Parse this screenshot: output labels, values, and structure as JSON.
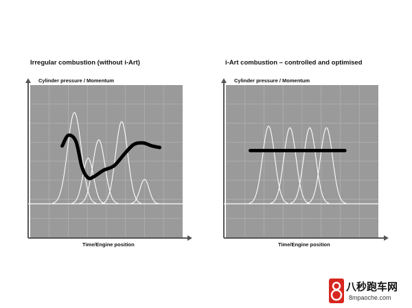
{
  "chart_data": [
    {
      "type": "line",
      "title": "Irregular combustion (without i-Art)",
      "ylabel": "Cylinder pressure / Momentum",
      "xlabel": "Time/Engine position",
      "grid": true,
      "momentum_line": {
        "x": [
          0.21,
          0.25,
          0.3,
          0.34,
          0.38,
          0.42,
          0.48,
          0.55,
          0.62,
          0.68,
          0.74,
          0.8,
          0.85
        ],
        "y": [
          0.6,
          0.67,
          0.63,
          0.46,
          0.39,
          0.4,
          0.44,
          0.47,
          0.55,
          0.61,
          0.62,
          0.6,
          0.59
        ]
      },
      "pressure_peaks": [
        {
          "center": 0.29,
          "height": 0.6,
          "width": 0.045
        },
        {
          "center": 0.38,
          "height": 0.3,
          "width": 0.035
        },
        {
          "center": 0.45,
          "height": 0.42,
          "width": 0.04
        },
        {
          "center": 0.6,
          "height": 0.54,
          "width": 0.04
        },
        {
          "center": 0.75,
          "height": 0.16,
          "width": 0.03
        }
      ],
      "baseline": 0.22
    },
    {
      "type": "line",
      "title": "i-Art combustion – controlled and optimised",
      "ylabel": "Cylinder pressure / Momentum",
      "xlabel": "Time/Engine position",
      "grid": true,
      "momentum_line": {
        "x": [
          0.16,
          0.78
        ],
        "y": [
          0.57,
          0.57
        ]
      },
      "pressure_peaks": [
        {
          "center": 0.28,
          "height": 0.51,
          "width": 0.04
        },
        {
          "center": 0.42,
          "height": 0.5,
          "width": 0.04
        },
        {
          "center": 0.55,
          "height": 0.5,
          "width": 0.04
        },
        {
          "center": 0.66,
          "height": 0.5,
          "width": 0.04
        }
      ],
      "baseline": 0.22
    }
  ],
  "watermark": {
    "name": "八秒跑车网",
    "url": "8mpaoche.com",
    "brand_color": "#d7261e"
  }
}
